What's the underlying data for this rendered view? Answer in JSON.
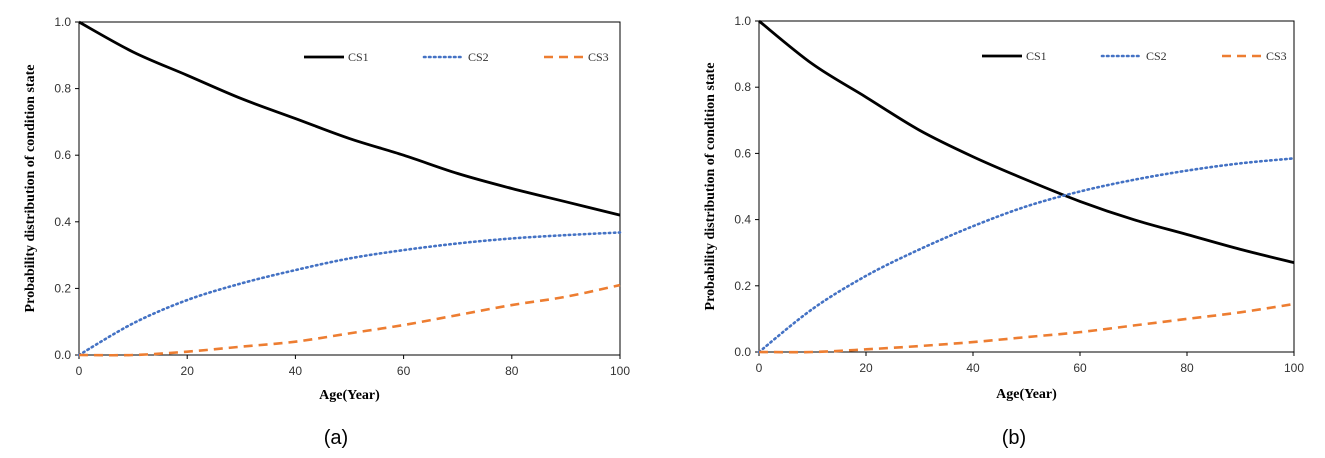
{
  "chart_data": [
    {
      "type": "line",
      "caption": "(a)",
      "xlabel": "Age(Year)",
      "ylabel": "Probability distribution of condition state",
      "xlim": [
        0,
        100
      ],
      "ylim": [
        0.0,
        1.0
      ],
      "xticks": [
        "0",
        "20",
        "40",
        "60",
        "80",
        "100"
      ],
      "yticks": [
        "0.0",
        "0.2",
        "0.4",
        "0.6",
        "0.8",
        "1.0"
      ],
      "legend_position": "top-right",
      "grid": false,
      "x": [
        0,
        10,
        20,
        30,
        40,
        50,
        60,
        70,
        80,
        90,
        100
      ],
      "series": [
        {
          "name": "CS1",
          "style": "solid",
          "color": "#000000",
          "values": [
            1.0,
            0.91,
            0.84,
            0.77,
            0.71,
            0.65,
            0.6,
            0.545,
            0.5,
            0.46,
            0.42
          ]
        },
        {
          "name": "CS2",
          "style": "dotted",
          "color": "#4472c4",
          "values": [
            0.0,
            0.095,
            0.165,
            0.215,
            0.255,
            0.29,
            0.315,
            0.335,
            0.35,
            0.36,
            0.368
          ]
        },
        {
          "name": "CS3",
          "style": "dashed",
          "color": "#ed7d31",
          "values": [
            0.0,
            0.0,
            0.01,
            0.025,
            0.04,
            0.065,
            0.09,
            0.12,
            0.15,
            0.175,
            0.21
          ]
        }
      ]
    },
    {
      "type": "line",
      "caption": "(b)",
      "xlabel": "Age(Year)",
      "ylabel": "Probability distribution of condition state",
      "xlim": [
        0,
        100
      ],
      "ylim": [
        0.0,
        1.0
      ],
      "xticks": [
        "0",
        "20",
        "40",
        "60",
        "80",
        "100"
      ],
      "yticks": [
        "0.0",
        "0.2",
        "0.4",
        "0.6",
        "0.8",
        "1.0"
      ],
      "legend_position": "top-right",
      "grid": false,
      "x": [
        0,
        10,
        20,
        30,
        40,
        50,
        60,
        70,
        80,
        90,
        100
      ],
      "series": [
        {
          "name": "CS1",
          "style": "solid",
          "color": "#000000",
          "values": [
            1.0,
            0.87,
            0.77,
            0.67,
            0.59,
            0.52,
            0.455,
            0.4,
            0.355,
            0.31,
            0.27
          ]
        },
        {
          "name": "CS2",
          "style": "dotted",
          "color": "#4472c4",
          "values": [
            0.0,
            0.13,
            0.23,
            0.31,
            0.38,
            0.44,
            0.485,
            0.52,
            0.548,
            0.57,
            0.585
          ]
        },
        {
          "name": "CS3",
          "style": "dashed",
          "color": "#ed7d31",
          "values": [
            0.0,
            0.0,
            0.008,
            0.018,
            0.03,
            0.045,
            0.06,
            0.08,
            0.1,
            0.12,
            0.145
          ]
        }
      ]
    }
  ]
}
